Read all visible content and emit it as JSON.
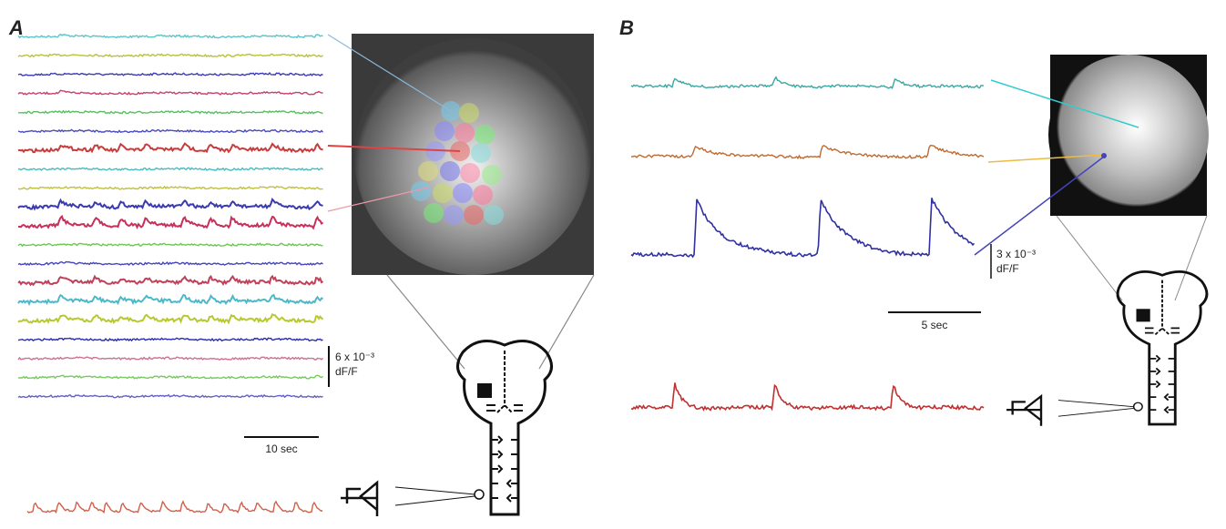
{
  "panels": [
    {
      "label": "A",
      "scale_bar": {
        "amplitude": "6 x 10⁻³",
        "unit": "dF/F",
        "time": "10 sec"
      }
    },
    {
      "label": "B",
      "scale_bar": {
        "amplitude": "3 x 10⁻³",
        "unit": "dF/F",
        "time": "5 sec"
      }
    }
  ]
}
